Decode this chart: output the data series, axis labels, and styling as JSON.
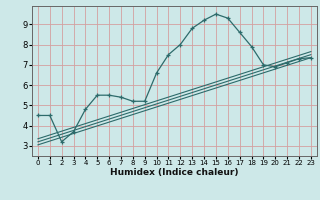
{
  "bg_color": "#cde8e8",
  "grid_color": "#d4a0a0",
  "line_color": "#2d6b6b",
  "xlabel": "Humidex (Indice chaleur)",
  "xlim": [
    -0.5,
    23.5
  ],
  "ylim": [
    2.5,
    9.9
  ],
  "yticks": [
    3,
    4,
    5,
    6,
    7,
    8,
    9
  ],
  "xticks": [
    0,
    1,
    2,
    3,
    4,
    5,
    6,
    7,
    8,
    9,
    10,
    11,
    12,
    13,
    14,
    15,
    16,
    17,
    18,
    19,
    20,
    21,
    22,
    23
  ],
  "curve_x": [
    0,
    1,
    2,
    3,
    4,
    5,
    6,
    7,
    8,
    9,
    10,
    11,
    12,
    13,
    14,
    15,
    16,
    17,
    18,
    19,
    20,
    21,
    22,
    23
  ],
  "curve_y": [
    4.5,
    4.5,
    3.2,
    3.7,
    4.8,
    5.5,
    5.5,
    5.4,
    5.2,
    5.2,
    6.6,
    7.5,
    8.0,
    8.8,
    9.2,
    9.5,
    9.3,
    8.6,
    7.9,
    7.0,
    6.9,
    7.1,
    7.3,
    7.35
  ],
  "line1_x": [
    0,
    23
  ],
  "line1_y": [
    3.05,
    7.35
  ],
  "line2_x": [
    0,
    23
  ],
  "line2_y": [
    3.2,
    7.5
  ],
  "line3_x": [
    0,
    23
  ],
  "line3_y": [
    3.35,
    7.65
  ],
  "figsize": [
    3.2,
    2.0
  ],
  "dpi": 100
}
